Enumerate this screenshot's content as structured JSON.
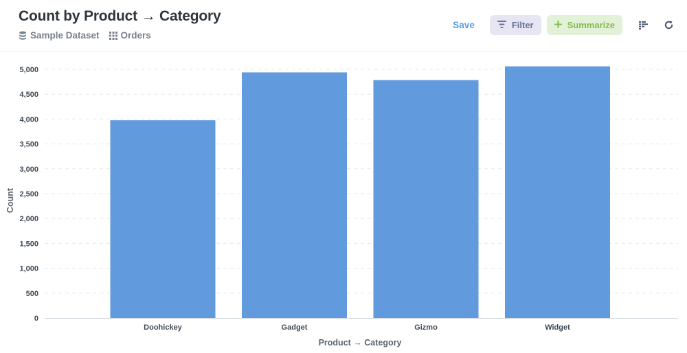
{
  "header": {
    "title": "Count by Product → Category",
    "breadcrumbs": [
      {
        "label": "Sample Dataset",
        "icon": "database-icon"
      },
      {
        "label": "Orders",
        "icon": "grid-icon"
      }
    ],
    "actions": {
      "save_label": "Save",
      "filter_label": "Filter",
      "summarize_label": "Summarize"
    }
  },
  "colors": {
    "bar": "#629bdd",
    "accent": "#509ee3",
    "filter_bg": "#e5e6f1",
    "summarize_bg": "#e3f1d8"
  },
  "chart_data": {
    "type": "bar",
    "categories": [
      "Doohickey",
      "Gadget",
      "Gizmo",
      "Widget"
    ],
    "values": [
      3976,
      4939,
      4784,
      5061
    ],
    "xlabel": "Product → Category",
    "ylabel": "Count",
    "ylim": [
      0,
      5000
    ],
    "yticks": [
      0,
      500,
      1000,
      1500,
      2000,
      2500,
      3000,
      3500,
      4000,
      4500,
      5000
    ],
    "ytick_labels": [
      "0",
      "500",
      "1,000",
      "1,500",
      "2,000",
      "2,500",
      "3,000",
      "3,500",
      "4,000",
      "4,500",
      "5,000"
    ],
    "grid": true,
    "legend": "none"
  }
}
